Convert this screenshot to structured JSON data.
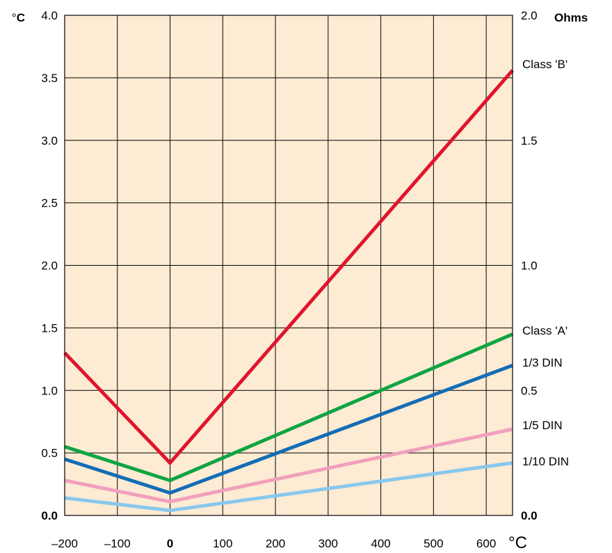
{
  "chart_data": {
    "type": "line",
    "xlabel": "°C",
    "ylabel_left": {
      "symbol": "°",
      "letter": "C"
    },
    "ylabel_right": "Ohms",
    "xlim": [
      -200,
      650
    ],
    "ylim": [
      0,
      4.0
    ],
    "grid": true,
    "plot_background": "#fdebd3",
    "x_ticks": [
      {
        "value": -200,
        "label": "–200",
        "bold": false
      },
      {
        "value": -100,
        "label": "–100",
        "bold": false
      },
      {
        "value": 0,
        "label": "0",
        "bold": true
      },
      {
        "value": 100,
        "label": "100",
        "bold": false
      },
      {
        "value": 200,
        "label": "200",
        "bold": false
      },
      {
        "value": 300,
        "label": "300",
        "bold": false
      },
      {
        "value": 400,
        "label": "400",
        "bold": false
      },
      {
        "value": 500,
        "label": "500",
        "bold": false
      },
      {
        "value": 600,
        "label": "600",
        "bold": false
      }
    ],
    "y_ticks_left": [
      {
        "value": 0.0,
        "label": "0.0",
        "bold": true
      },
      {
        "value": 0.5,
        "label": "0.5",
        "bold": false
      },
      {
        "value": 1.0,
        "label": "1.0",
        "bold": false
      },
      {
        "value": 1.5,
        "label": "1.5",
        "bold": false
      },
      {
        "value": 2.0,
        "label": "2.0",
        "bold": false
      },
      {
        "value": 2.5,
        "label": "2.5",
        "bold": false
      },
      {
        "value": 3.0,
        "label": "3.0",
        "bold": false
      },
      {
        "value": 3.5,
        "label": "3.5",
        "bold": false
      },
      {
        "value": 4.0,
        "label": "4.0",
        "bold": false
      }
    ],
    "y_ticks_right": [
      {
        "value": 0.0,
        "label": "0.0",
        "bold": true
      },
      {
        "value": 0.5,
        "label": "0.5",
        "bold": false
      },
      {
        "value": 1.0,
        "label": "1.0",
        "bold": false
      },
      {
        "value": 1.5,
        "label": "1.5",
        "bold": false
      },
      {
        "value": 2.0,
        "label": "2.0",
        "bold": false
      }
    ],
    "series": [
      {
        "name": "Class 'B'",
        "color": "#e0142d",
        "x": [
          -200,
          0,
          650
        ],
        "y": [
          1.3,
          0.42,
          3.56
        ]
      },
      {
        "name": "Class 'A'",
        "color": "#0ea442",
        "x": [
          -200,
          0,
          650
        ],
        "y": [
          0.55,
          0.28,
          1.45
        ]
      },
      {
        "name": "1/3 DIN",
        "color": "#136db5",
        "x": [
          -200,
          0,
          650
        ],
        "y": [
          0.45,
          0.18,
          1.2
        ]
      },
      {
        "name": "1/5 DIN",
        "color": "#f29fbd",
        "x": [
          -200,
          0,
          650
        ],
        "y": [
          0.28,
          0.11,
          0.69
        ]
      },
      {
        "name": "1/10 DIN",
        "color": "#88c8ee",
        "x": [
          -200,
          0,
          650
        ],
        "y": [
          0.14,
          0.04,
          0.42
        ]
      }
    ]
  }
}
